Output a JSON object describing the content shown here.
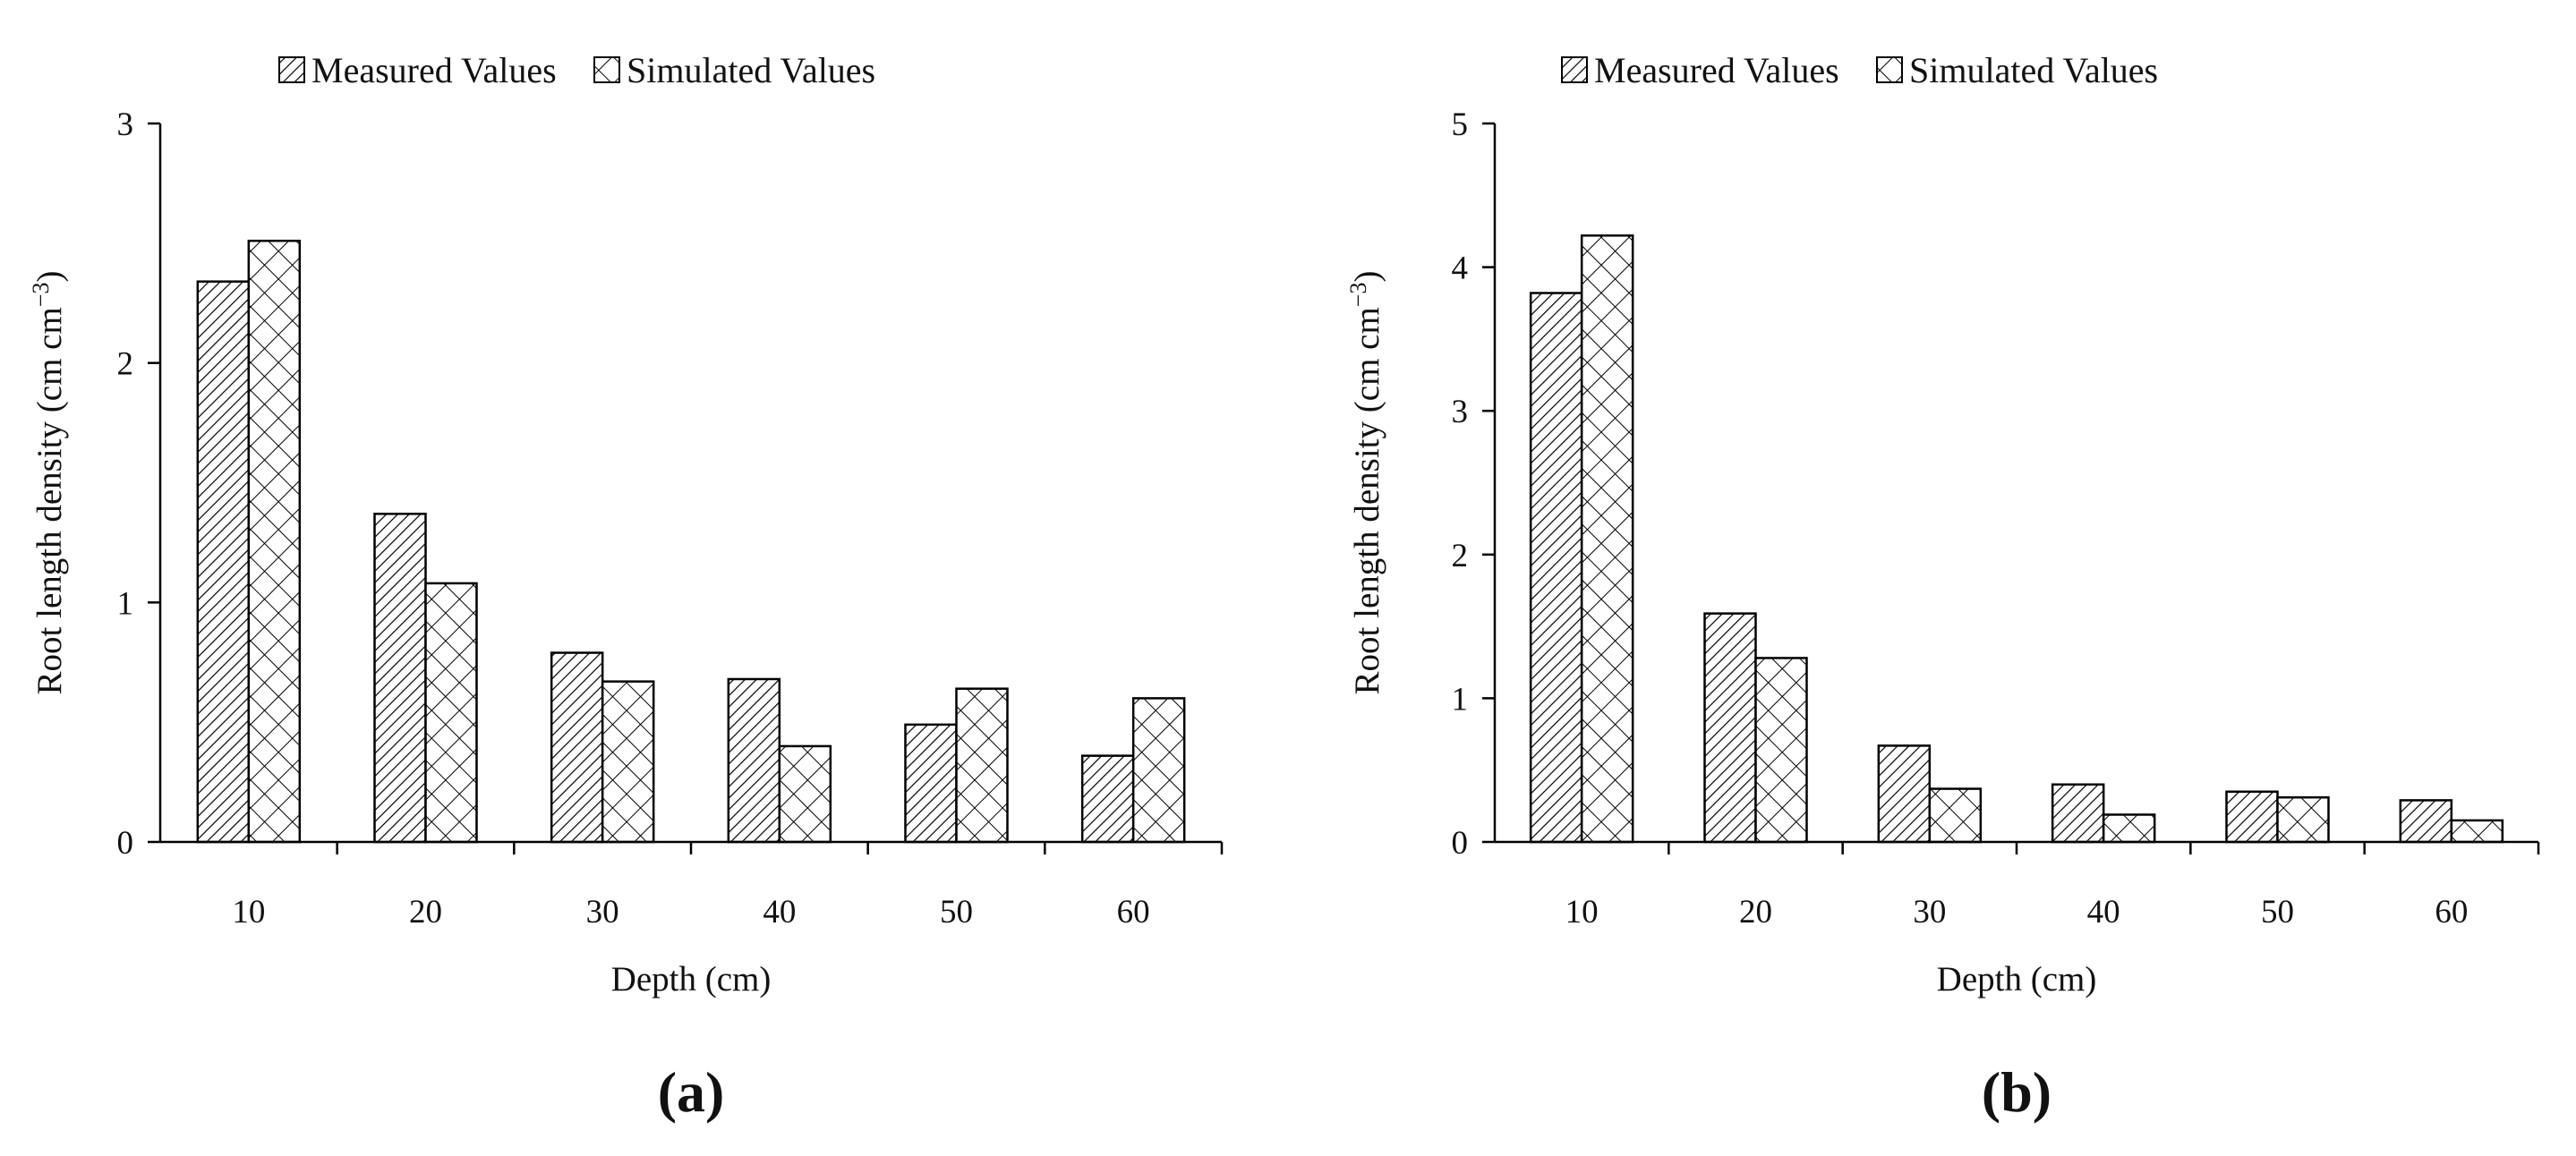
{
  "chart_data": [
    {
      "type": "bar",
      "panel_label": "(a)",
      "categories": [
        "10",
        "20",
        "30",
        "40",
        "50",
        "60"
      ],
      "series": [
        {
          "name": "Measured Values",
          "pattern": "diagonal-hatch",
          "values": [
            2.34,
            1.37,
            0.79,
            0.68,
            0.49,
            0.36
          ]
        },
        {
          "name": "Simulated Values",
          "pattern": "cross-hatch",
          "values": [
            2.51,
            1.08,
            0.67,
            0.4,
            0.64,
            0.6
          ]
        }
      ],
      "xlabel": "Depth (cm)",
      "ylabel": "Root length density (cm cm",
      "ylabel_sup": "−3",
      "ylabel_end": ")",
      "ylim": [
        0,
        3
      ],
      "yticks": [
        "0",
        "1",
        "2",
        "3"
      ],
      "grid": false,
      "legend_position": "top"
    },
    {
      "type": "bar",
      "panel_label": "(b)",
      "categories": [
        "10",
        "20",
        "30",
        "40",
        "50",
        "60"
      ],
      "series": [
        {
          "name": "Measured Values",
          "pattern": "diagonal-hatch",
          "values": [
            3.82,
            1.59,
            0.67,
            0.4,
            0.35,
            0.29
          ]
        },
        {
          "name": "Simulated Values",
          "pattern": "cross-hatch",
          "values": [
            4.22,
            1.28,
            0.37,
            0.19,
            0.31,
            0.15
          ]
        }
      ],
      "xlabel": "Depth (cm)",
      "ylabel": "Root length density (cm cm",
      "ylabel_sup": "−3",
      "ylabel_end": ")",
      "ylim": [
        0,
        5
      ],
      "yticks": [
        "0",
        "1",
        "2",
        "3",
        "4",
        "5"
      ],
      "grid": false,
      "legend_position": "top"
    }
  ]
}
